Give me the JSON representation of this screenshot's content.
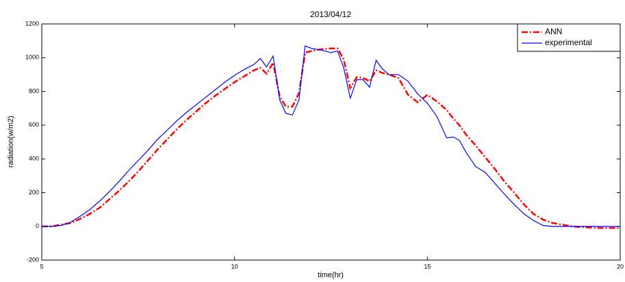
{
  "chart_data": {
    "type": "line",
    "title": "2013/04/12",
    "x_label": "time(hr)",
    "y_label": "radiation(w/m2)",
    "x": [
      5,
      5.25,
      5.5,
      5.75,
      6,
      6.25,
      6.5,
      6.75,
      7,
      7.25,
      7.5,
      7.75,
      8,
      8.25,
      8.5,
      8.75,
      9,
      9.25,
      9.5,
      9.75,
      10,
      10.25,
      10.5,
      10.67,
      10.83,
      11,
      11.17,
      11.33,
      11.5,
      11.67,
      11.83,
      12,
      12.25,
      12.5,
      12.67,
      12.83,
      13,
      13.17,
      13.33,
      13.5,
      13.67,
      13.83,
      14,
      14.25,
      14.5,
      14.75,
      15,
      15.25,
      15.5,
      15.67,
      15.83,
      16,
      16.25,
      16.5,
      16.75,
      17,
      17.25,
      17.5,
      17.75,
      18,
      18.25,
      18.5,
      18.75,
      19,
      19.25,
      19.5,
      19.75,
      20
    ],
    "series": [
      {
        "name": "ANN",
        "color": "#ff0000",
        "dash": "dashdot",
        "values": [
          0,
          0,
          10,
          20,
          45,
          75,
          110,
          160,
          210,
          265,
          325,
          390,
          455,
          515,
          575,
          630,
          680,
          730,
          775,
          815,
          855,
          890,
          925,
          940,
          905,
          970,
          770,
          710,
          710,
          790,
          1030,
          1040,
          1050,
          1055,
          1055,
          990,
          820,
          885,
          880,
          860,
          925,
          910,
          900,
          880,
          780,
          735,
          780,
          740,
          690,
          640,
          600,
          545,
          480,
          410,
          340,
          265,
          200,
          130,
          75,
          40,
          20,
          10,
          0,
          -5,
          -8,
          -10,
          -10,
          -10
        ]
      },
      {
        "name": "experimental",
        "color": "#0000ff",
        "dash": "solid",
        "values": [
          0,
          0,
          5,
          25,
          60,
          100,
          150,
          205,
          265,
          330,
          390,
          450,
          515,
          570,
          625,
          675,
          720,
          765,
          810,
          855,
          895,
          930,
          960,
          995,
          945,
          1010,
          750,
          670,
          660,
          750,
          1070,
          1055,
          1045,
          1030,
          1040,
          940,
          760,
          870,
          870,
          825,
          985,
          935,
          900,
          900,
          860,
          785,
          730,
          650,
          525,
          530,
          510,
          440,
          355,
          320,
          255,
          190,
          130,
          75,
          35,
          5,
          0,
          0,
          0,
          0,
          0,
          0,
          0,
          0
        ]
      }
    ],
    "xlim": [
      5,
      20
    ],
    "xticks": [
      5,
      10,
      15,
      20
    ],
    "ylim": [
      -200,
      1200
    ],
    "yticks": [
      -200,
      0,
      200,
      400,
      600,
      800,
      1000,
      1200
    ],
    "legend": "northeast"
  }
}
